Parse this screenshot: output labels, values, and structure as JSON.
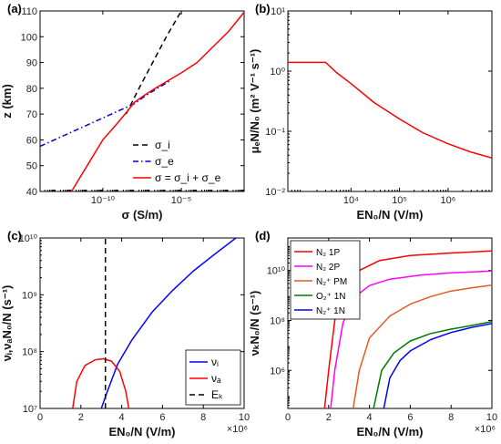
{
  "chart_data": [
    {
      "panel": "(a)",
      "type": "line",
      "xlabel": "σ (S/m)",
      "ylabel": "z (km)",
      "xscale": "log",
      "xlim": [
        1e-14,
        0.1
      ],
      "ylim": [
        40,
        110
      ],
      "xticks": [
        {
          "v": 1e-10,
          "label": "10⁻¹⁰"
        },
        {
          "v": 1e-05,
          "label": "10⁻⁵"
        }
      ],
      "yticks": [
        40,
        50,
        60,
        70,
        80,
        90,
        100,
        110
      ],
      "legend": "bottom-right",
      "series": [
        {
          "name": "σ_i",
          "color": "#000000",
          "dash": "dashed",
          "points": [
            [
              3e-09,
              70
            ],
            [
              2e-08,
              80
            ],
            [
              1.5e-07,
              90
            ],
            [
              1.1e-06,
              100
            ],
            [
              1e-05,
              110
            ]
          ]
        },
        {
          "name": "σ_e",
          "color": "#0000cc",
          "dash": "dashdot",
          "points": [
            [
              1e-14,
              57.5
            ],
            [
              1e-12,
              63
            ],
            [
              1e-10,
              68.5
            ],
            [
              1e-08,
              74
            ],
            [
              5e-08,
              77
            ],
            [
              3e-07,
              80
            ],
            [
              2e-06,
              83
            ]
          ]
        },
        {
          "name": "σ = σ_i + σ_e",
          "color": "#ff0000",
          "dash": "solid",
          "points": [
            [
              1e-12,
              40
            ],
            [
              1e-11,
              50
            ],
            [
              1e-10,
              60
            ],
            [
              1e-09,
              67
            ],
            [
              3e-09,
              70.5
            ],
            [
              1e-08,
              74.5
            ],
            [
              5e-08,
              77.5
            ],
            [
              3e-07,
              80.5
            ],
            [
              2e-06,
              83.5
            ],
            [
              1e-05,
              86
            ],
            [
              0.0001,
              90
            ],
            [
              0.001,
              96
            ],
            [
              0.01,
              102
            ],
            [
              0.1,
              109.5
            ]
          ]
        }
      ]
    },
    {
      "panel": "(b)",
      "type": "line",
      "xlabel": "EN₀/N (V/m)",
      "ylabel": "μₑN/N₀ (m² V⁻¹ s⁻¹)",
      "xscale": "log",
      "yscale": "log",
      "xlim": [
        500,
        8000000
      ],
      "ylim": [
        0.01,
        10
      ],
      "xticks": [
        {
          "v": 10000,
          "label": "10⁴"
        },
        {
          "v": 100000,
          "label": "10⁵"
        },
        {
          "v": 1000000,
          "label": "10⁶"
        }
      ],
      "yticks": [
        {
          "v": 0.01,
          "label": "10⁻²"
        },
        {
          "v": 0.1,
          "label": "10⁻¹"
        },
        {
          "v": 1,
          "label": "10⁰"
        },
        {
          "v": 10,
          "label": "10¹"
        }
      ],
      "series": [
        {
          "name": "",
          "color": "#ff0000",
          "dash": "solid",
          "points": [
            [
              500,
              1.4
            ],
            [
              3000,
              1.4
            ],
            [
              5000,
              0.95
            ],
            [
              10000,
              0.62
            ],
            [
              30000,
              0.3
            ],
            [
              100000,
              0.16
            ],
            [
              300000,
              0.095
            ],
            [
              1000000,
              0.062
            ],
            [
              3000000,
              0.045
            ],
            [
              8000000,
              0.036
            ]
          ]
        }
      ]
    },
    {
      "panel": "(c)",
      "type": "line",
      "xlabel": "EN₀/N (V/m)",
      "ylabel": "νᵢ,νₐN₀/N (s⁻¹)",
      "xscale": "linear",
      "yscale": "log",
      "xlim": [
        0,
        10000000
      ],
      "ylim": [
        10000000,
        10000000000
      ],
      "x_multiplier": "×10⁶",
      "xticks": [
        {
          "v": 0,
          "label": "0"
        },
        {
          "v": 2000000,
          "label": "2"
        },
        {
          "v": 4000000,
          "label": "4"
        },
        {
          "v": 6000000,
          "label": "6"
        },
        {
          "v": 8000000,
          "label": "8"
        },
        {
          "v": 10000000,
          "label": "10"
        }
      ],
      "yticks": [
        {
          "v": 10000000,
          "label": "10⁷"
        },
        {
          "v": 100000000,
          "label": "10⁸"
        },
        {
          "v": 1000000000,
          "label": "10⁹"
        },
        {
          "v": 10000000000,
          "label": "10¹⁰"
        }
      ],
      "legend": "bottom-right",
      "series": [
        {
          "name": "νᵢ",
          "color": "#0000ff",
          "dash": "solid",
          "points": [
            [
              3000000,
              10000000
            ],
            [
              3300000,
              20000000
            ],
            [
              3800000,
              60000000
            ],
            [
              4500000,
              160000000
            ],
            [
              5500000,
              500000000
            ],
            [
              6500000,
              1200000000
            ],
            [
              7500000,
              2600000000
            ],
            [
              8500000,
              5000000000
            ],
            [
              9600000,
              10000000000
            ]
          ]
        },
        {
          "name": "νₐ",
          "color": "#ff0000",
          "dash": "solid",
          "points": [
            [
              1600000,
              10000000
            ],
            [
              1800000,
              30000000
            ],
            [
              2200000,
              57000000
            ],
            [
              2700000,
              72000000
            ],
            [
              3100000,
              75000000
            ],
            [
              3500000,
              68000000
            ],
            [
              3900000,
              45000000
            ],
            [
              4200000,
              20000000
            ],
            [
              4350000,
              10000000
            ]
          ]
        },
        {
          "name": "Eₖ",
          "color": "#000000",
          "dash": "dashed",
          "points": [
            [
              3200000,
              10000000
            ],
            [
              3200000,
              10000000000
            ]
          ]
        }
      ]
    },
    {
      "panel": "(d)",
      "type": "line",
      "xlabel": "EN₀/N (V/m)",
      "ylabel": "νₖN₀/N (s⁻¹)",
      "xscale": "linear",
      "yscale": "log",
      "xlim": [
        0,
        10000000
      ],
      "ylim": [
        30000,
        200000000000
      ],
      "x_multiplier": "×10⁶",
      "xticks": [
        {
          "v": 0,
          "label": "0"
        },
        {
          "v": 2000000,
          "label": "2"
        },
        {
          "v": 4000000,
          "label": "4"
        },
        {
          "v": 6000000,
          "label": "6"
        },
        {
          "v": 8000000,
          "label": "8"
        },
        {
          "v": 10000000,
          "label": "10"
        }
      ],
      "yticks": [
        {
          "v": 1000000,
          "label": "10⁶"
        },
        {
          "v": 100000000,
          "label": "10⁸"
        },
        {
          "v": 10000000000,
          "label": "10¹⁰"
        }
      ],
      "legend": "top-left",
      "series": [
        {
          "name": "N₂ 1P",
          "color": "#ff0000",
          "dash": "solid",
          "points": [
            [
              1800000,
              30000
            ],
            [
              2000000,
              1000000
            ],
            [
              2300000,
              100000000
            ],
            [
              2800000,
              2000000000
            ],
            [
              3500000,
              10000000000
            ],
            [
              4500000,
              25000000000
            ],
            [
              6000000,
              40000000000
            ],
            [
              8000000,
              50000000000
            ],
            [
              10000000,
              60000000000
            ]
          ]
        },
        {
          "name": "N₂ 2P",
          "color": "#ff00ff",
          "dash": "solid",
          "points": [
            [
              2100000,
              30000
            ],
            [
              2300000,
              1000000
            ],
            [
              2700000,
              80000000
            ],
            [
              3300000,
              900000000
            ],
            [
              4000000,
              2500000000
            ],
            [
              5000000,
              4500000000
            ],
            [
              6500000,
              6500000000
            ],
            [
              8000000,
              8000000000
            ],
            [
              10000000,
              9500000000
            ]
          ]
        },
        {
          "name": "N₂⁺ PM",
          "color": "#e55a1e",
          "dash": "solid",
          "points": [
            [
              3200000,
              30000
            ],
            [
              3500000,
              1000000
            ],
            [
              4000000,
              20000000
            ],
            [
              5000000,
              150000000
            ],
            [
              6000000,
              450000000
            ],
            [
              7000000,
              900000000
            ],
            [
              8000000,
              1500000000
            ],
            [
              9000000,
              2000000000
            ],
            [
              10000000,
              2600000000
            ]
          ]
        },
        {
          "name": "O₂⁺ 1N",
          "color": "#007a00",
          "dash": "solid",
          "points": [
            [
              4200000,
              30000
            ],
            [
              4600000,
              1000000
            ],
            [
              5200000,
              5000000
            ],
            [
              6000000,
              15000000
            ],
            [
              7000000,
              30000000
            ],
            [
              8000000,
              45000000
            ],
            [
              9000000,
              62000000
            ],
            [
              10000000,
              90000000
            ]
          ]
        },
        {
          "name": "N₂⁺ 1N",
          "color": "#0000ff",
          "dash": "solid",
          "points": [
            [
              4700000,
              30000
            ],
            [
              5000000,
              500000
            ],
            [
              5500000,
              2500000
            ],
            [
              6000000,
              6000000
            ],
            [
              7000000,
              17000000
            ],
            [
              8000000,
              33000000
            ],
            [
              9000000,
              52000000
            ],
            [
              10000000,
              75000000
            ]
          ]
        }
      ]
    }
  ]
}
